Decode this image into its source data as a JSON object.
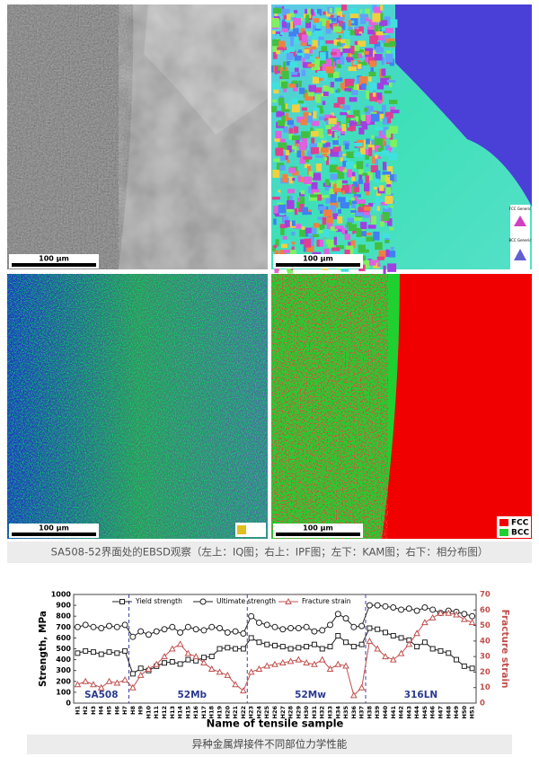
{
  "figure": {
    "panels": [
      {
        "scale_label": "100 µm"
      },
      {
        "scale_label": "100 µm",
        "legend": [
          "FCC Generic",
          "BCC Generic"
        ]
      },
      {
        "scale_label": "100 µm"
      },
      {
        "scale_label": "100 µm",
        "legend": [
          "FCC",
          "BCC"
        ]
      }
    ],
    "caption": "SA508-52界面处的EBSD观察（左上：IQ图；右上：IPF图；左下：KAM图；右下：相分布图）"
  },
  "chart_data": {
    "type": "line",
    "xlabel": "Name of tensile sample",
    "ylabel": "Strength, MPa",
    "y2label": "Fracture strain",
    "categories": [
      "H1",
      "H2",
      "H3",
      "H4",
      "H5",
      "H6",
      "H7",
      "H8",
      "H9",
      "H10",
      "H11",
      "H12",
      "H13",
      "H14",
      "H15",
      "H16",
      "H17",
      "H18",
      "H19",
      "H20",
      "H21",
      "H22",
      "H23",
      "H24",
      "H25",
      "H26",
      "H27",
      "H28",
      "H29",
      "H30",
      "H31",
      "H32",
      "H33",
      "H34",
      "H35",
      "H36",
      "H37",
      "H38",
      "H39",
      "H40",
      "H41",
      "H42",
      "H43",
      "H44",
      "H45",
      "H46",
      "H47",
      "H48",
      "H49",
      "H50",
      "H51"
    ],
    "series": [
      {
        "name": "Yield strength",
        "color": "#222222",
        "marker": "square",
        "values": [
          460,
          480,
          470,
          450,
          470,
          460,
          480,
          270,
          320,
          300,
          340,
          370,
          380,
          360,
          400,
          390,
          420,
          430,
          500,
          510,
          500,
          500,
          600,
          560,
          540,
          530,
          520,
          500,
          510,
          520,
          540,
          500,
          520,
          620,
          560,
          520,
          540,
          690,
          680,
          650,
          620,
          600,
          580,
          520,
          560,
          500,
          480,
          460,
          400,
          340,
          320
        ]
      },
      {
        "name": "Ultimate strength",
        "color": "#222222",
        "marker": "circle",
        "values": [
          700,
          720,
          700,
          690,
          710,
          700,
          720,
          610,
          660,
          630,
          660,
          680,
          700,
          650,
          700,
          680,
          670,
          700,
          690,
          650,
          660,
          640,
          800,
          740,
          720,
          700,
          680,
          690,
          690,
          700,
          660,
          670,
          720,
          820,
          780,
          700,
          710,
          900,
          900,
          890,
          880,
          860,
          870,
          850,
          880,
          860,
          830,
          850,
          840,
          820,
          800
        ]
      },
      {
        "name": "Fracture strain",
        "color": "#c0504d",
        "marker": "triangle",
        "axis": "y2",
        "values": [
          12,
          14,
          12,
          10,
          14,
          13,
          15,
          10,
          18,
          22,
          25,
          30,
          35,
          38,
          32,
          30,
          26,
          22,
          20,
          18,
          12,
          8,
          20,
          22,
          24,
          25,
          26,
          27,
          28,
          26,
          25,
          28,
          22,
          25,
          24,
          5,
          10,
          40,
          35,
          30,
          28,
          32,
          38,
          45,
          52,
          55,
          58,
          58,
          57,
          54,
          52
        ]
      }
    ],
    "annotations": [
      "SA508",
      "52Mb",
      "52Mw",
      "316LN"
    ],
    "ylim": [
      0,
      1000
    ],
    "yticks": [
      0,
      100,
      200,
      300,
      400,
      500,
      600,
      700,
      800,
      900,
      1000
    ],
    "y2lim": [
      0,
      70
    ],
    "y2ticks": [
      0,
      10,
      20,
      30,
      40,
      50,
      60,
      70
    ]
  },
  "caption2": "异种金属焊接件不同部位力学性能"
}
